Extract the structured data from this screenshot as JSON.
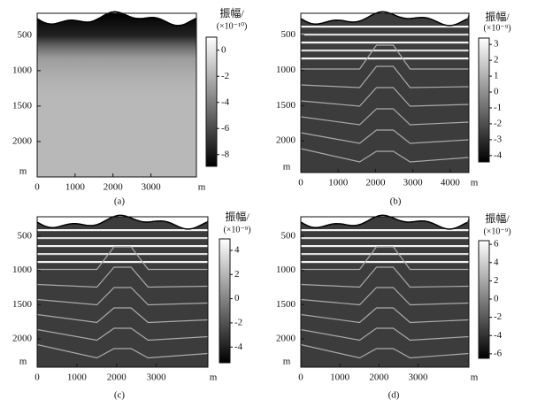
{
  "chart_data": [
    {
      "type": "image",
      "caption": "(a)",
      "x_label": "m",
      "y_label": "m",
      "xlim": [
        0,
        4200
      ],
      "xticks": [
        0,
        1000,
        2000,
        3000
      ],
      "ylim": [
        190,
        2500
      ],
      "yticks": [
        500,
        1000,
        1500,
        2000
      ],
      "colorbar": {
        "title": "振幅/",
        "unit": "(×10⁻¹⁰)",
        "lim": [
          -8.9,
          1
        ],
        "ticks": [
          0,
          -2,
          -4,
          -6,
          -8
        ]
      }
    },
    {
      "type": "image",
      "caption": "(b)",
      "x_label": "m",
      "y_label": "m",
      "xlim": [
        0,
        4500
      ],
      "xticks": [
        0,
        1000,
        2000,
        3000,
        4000
      ],
      "ylim": [
        190,
        2450
      ],
      "yticks": [
        500,
        1000,
        1500,
        2000
      ],
      "colorbar": {
        "title": "振幅/",
        "unit": "(×10⁻⁹)",
        "lim": [
          -4.4,
          3.4
        ],
        "ticks": [
          3,
          2,
          1,
          0,
          -1,
          -2,
          -3,
          -4
        ]
      }
    },
    {
      "type": "image",
      "caption": "(c)",
      "x_label": "m",
      "y_label": "m",
      "xlim": [
        0,
        4300
      ],
      "xticks": [
        0,
        1000,
        2000,
        3000
      ],
      "ylim": [
        215,
        2415
      ],
      "yticks": [
        500,
        1000,
        1500,
        2000
      ],
      "colorbar": {
        "title": "振幅/",
        "unit": "(×10⁻⁹)",
        "lim": [
          -5.3,
          4.95
        ],
        "ticks": [
          4,
          2,
          0,
          -2,
          -4
        ]
      }
    },
    {
      "type": "image",
      "caption": "(d)",
      "x_label": "m",
      "y_label": "m",
      "xlim": [
        0,
        4300
      ],
      "xticks": [
        0,
        1000,
        2000,
        3000
      ],
      "ylim": [
        215,
        2415
      ],
      "yticks": [
        500,
        1000,
        1500,
        2000
      ],
      "colorbar": {
        "title": "振幅/",
        "unit": "(×10⁻⁹)",
        "lim": [
          -6.5,
          6.4
        ],
        "ticks": [
          6,
          4,
          2,
          0,
          -2,
          -4,
          -6
        ]
      }
    }
  ]
}
